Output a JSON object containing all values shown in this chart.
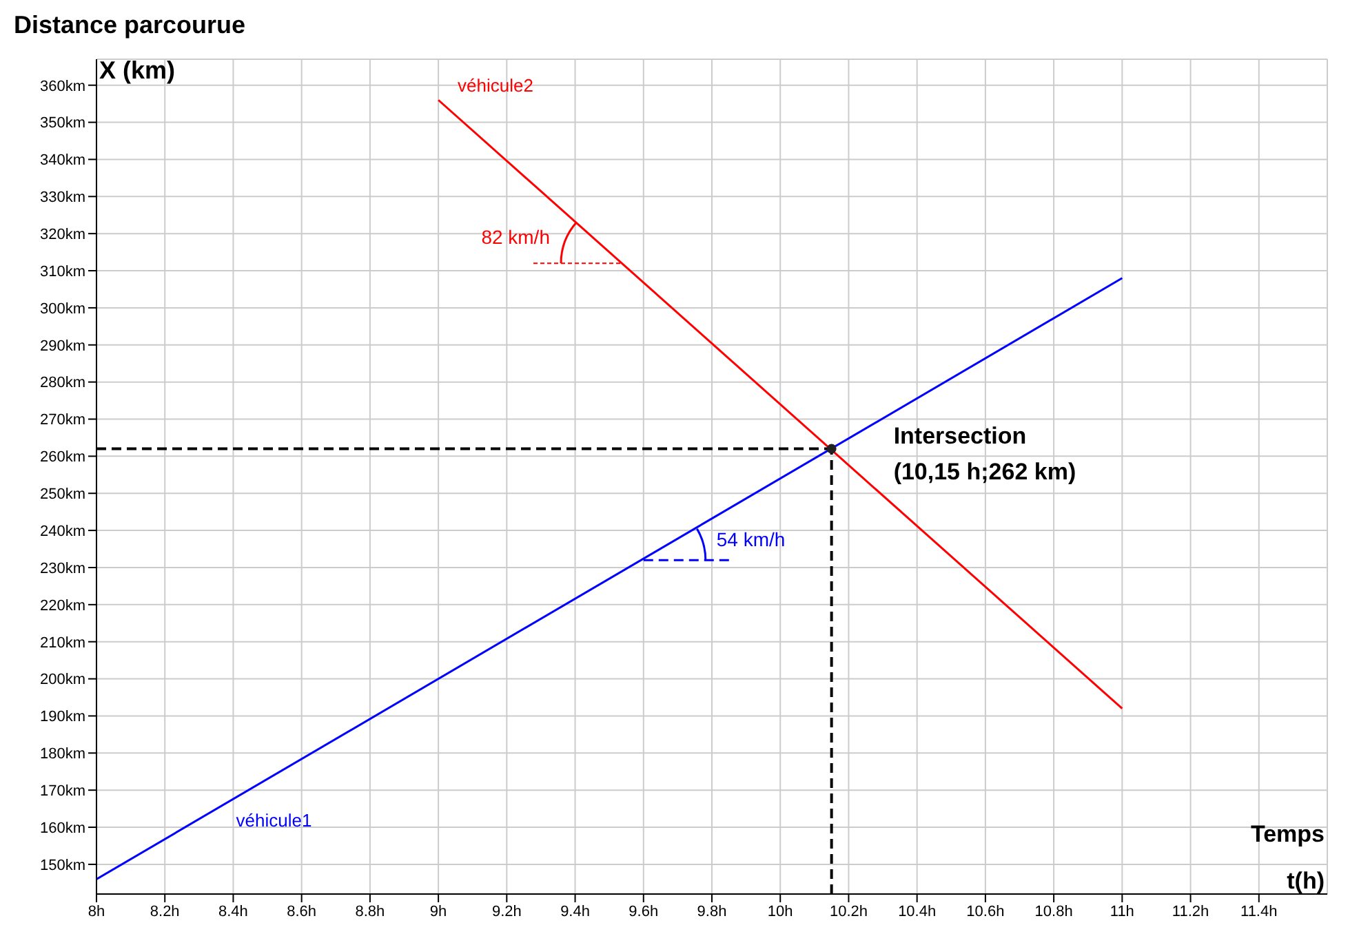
{
  "chart_data": {
    "type": "line",
    "title": "Distance parcourue",
    "ylabel": "X (km)",
    "xlabel": "Temps t(h)",
    "xlim": [
      8,
      11.6
    ],
    "ylim": [
      142,
      367
    ],
    "xticks": [
      {
        "value": 8,
        "label": "8h"
      },
      {
        "value": 8.2,
        "label": "8.2h"
      },
      {
        "value": 8.4,
        "label": "8.4h"
      },
      {
        "value": 8.6,
        "label": "8.6h"
      },
      {
        "value": 8.8,
        "label": "8.8h"
      },
      {
        "value": 9,
        "label": "9h"
      },
      {
        "value": 9.2,
        "label": "9.2h"
      },
      {
        "value": 9.4,
        "label": "9.4h"
      },
      {
        "value": 9.6,
        "label": "9.6h"
      },
      {
        "value": 9.8,
        "label": "9.8h"
      },
      {
        "value": 10,
        "label": "10h"
      },
      {
        "value": 10.2,
        "label": "10.2h"
      },
      {
        "value": 10.4,
        "label": "10.4h"
      },
      {
        "value": 10.6,
        "label": "10.6h"
      },
      {
        "value": 10.8,
        "label": "10.8h"
      },
      {
        "value": 11,
        "label": "11h"
      },
      {
        "value": 11.2,
        "label": "11.2h"
      },
      {
        "value": 11.4,
        "label": "11.4h"
      }
    ],
    "yticks": [
      {
        "value": 150,
        "label": "150km"
      },
      {
        "value": 160,
        "label": "160km"
      },
      {
        "value": 170,
        "label": "170km"
      },
      {
        "value": 180,
        "label": "180km"
      },
      {
        "value": 190,
        "label": "190km"
      },
      {
        "value": 200,
        "label": "200km"
      },
      {
        "value": 210,
        "label": "210km"
      },
      {
        "value": 220,
        "label": "220km"
      },
      {
        "value": 230,
        "label": "230km"
      },
      {
        "value": 240,
        "label": "240km"
      },
      {
        "value": 250,
        "label": "250km"
      },
      {
        "value": 260,
        "label": "260km"
      },
      {
        "value": 270,
        "label": "270km"
      },
      {
        "value": 280,
        "label": "280km"
      },
      {
        "value": 290,
        "label": "290km"
      },
      {
        "value": 300,
        "label": "300km"
      },
      {
        "value": 310,
        "label": "310km"
      },
      {
        "value": 320,
        "label": "320km"
      },
      {
        "value": 330,
        "label": "330km"
      },
      {
        "value": 340,
        "label": "340km"
      },
      {
        "value": 350,
        "label": "350km"
      },
      {
        "value": 360,
        "label": "360km"
      }
    ],
    "grid": true,
    "series": [
      {
        "name": "véhicule2",
        "color": "#ff0000",
        "x": [
          9,
          11
        ],
        "values": [
          356,
          192
        ]
      },
      {
        "name": "véhicule1",
        "color": "#0000ff",
        "x": [
          8,
          11
        ],
        "values": [
          146,
          308
        ]
      }
    ],
    "ref_lines": [
      {
        "axis": "y",
        "value": 262,
        "color": "#000000",
        "line_style": "dashed"
      },
      {
        "axis": "x",
        "value": 10.15,
        "color": "#000000",
        "line_style": "dashed"
      }
    ],
    "annotations": [
      {
        "text": "82 km/h",
        "x": 9.54,
        "y": 312
      },
      {
        "text": "54 km/h",
        "x": 9.6,
        "y": 232
      },
      {
        "text": "Intersection (10,15 h;262 km)",
        "x": 10.15,
        "y": 262
      }
    ]
  }
}
